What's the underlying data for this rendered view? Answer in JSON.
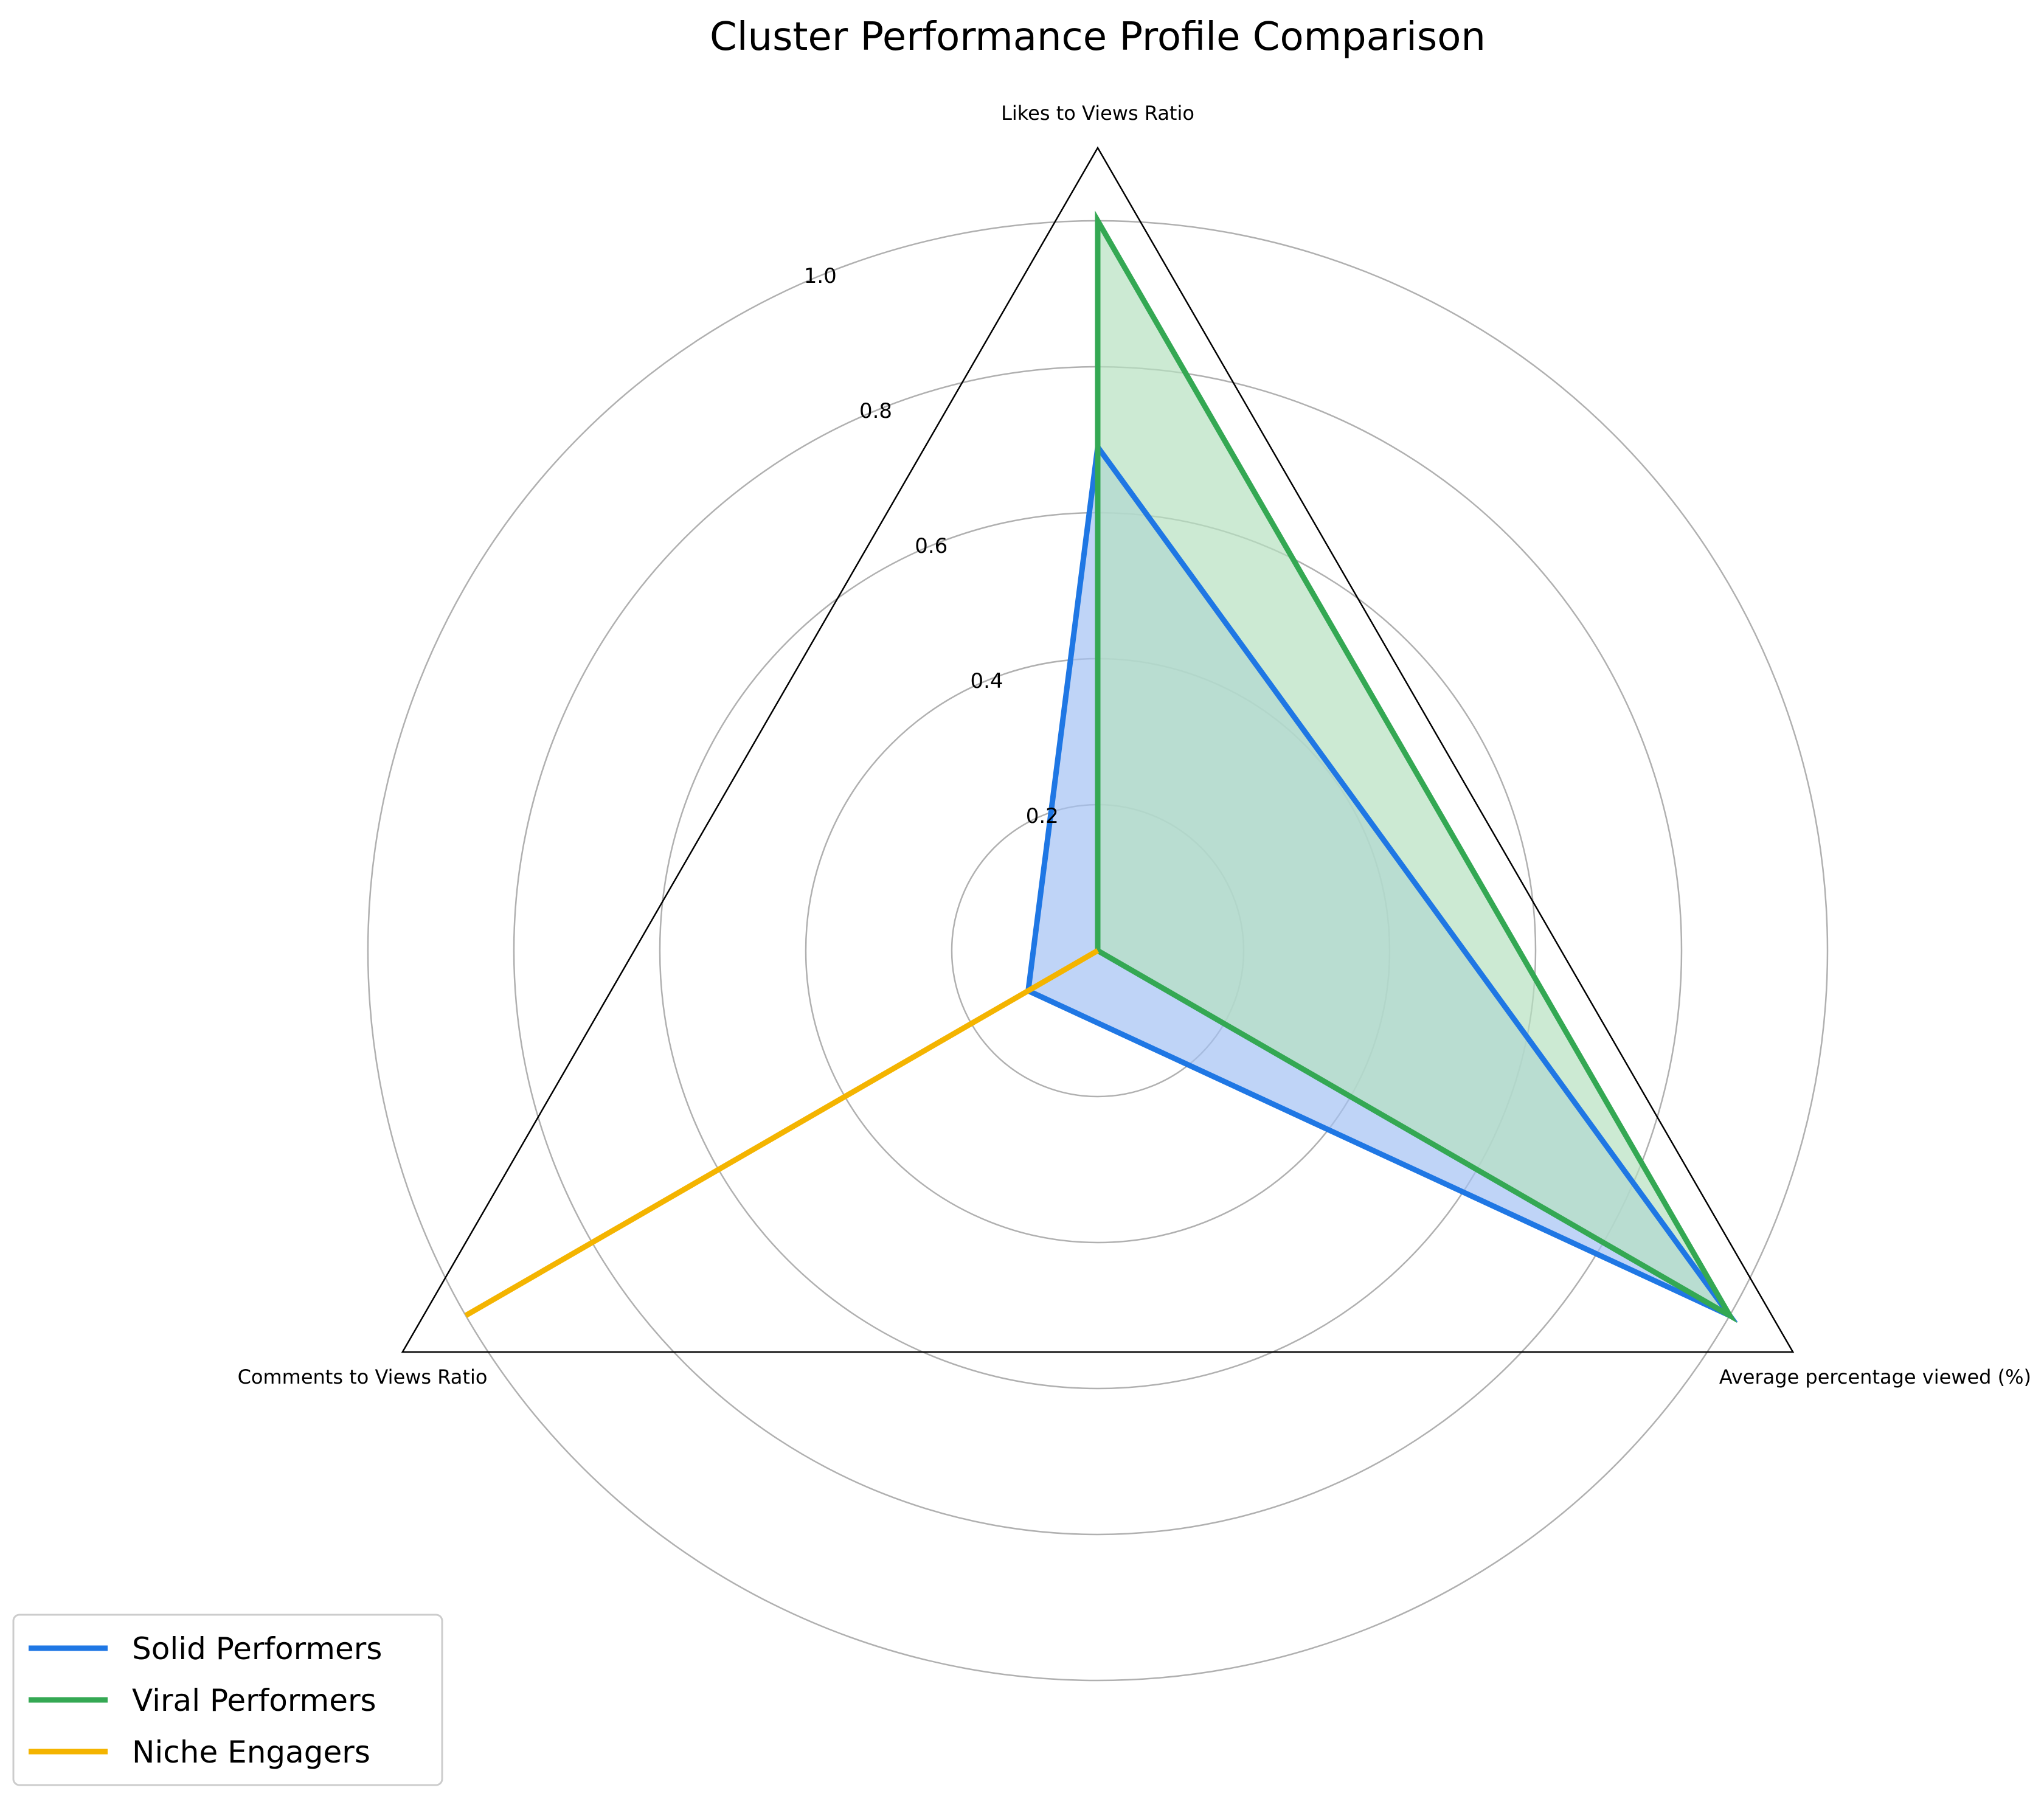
{
  "chart_data": {
    "type": "radar",
    "title": "Cluster Performance Profile Comparison",
    "axes": [
      "Likes to Views Ratio",
      "Average percentage viewed (%)",
      "Comments to Views Ratio"
    ],
    "rlim": [
      0,
      1.1
    ],
    "r_ticks": [
      0.2,
      0.4,
      0.6,
      0.8,
      1.0
    ],
    "r_tick_labels": [
      "0.2",
      "0.4",
      "0.6",
      "0.8",
      "1.0"
    ],
    "grid": true,
    "legend_position": "lower-left",
    "series": [
      {
        "name": "Solid Performers",
        "color": "#1f77e4",
        "fill": "#a4c2f4",
        "filled": true,
        "values": [
          0.69,
          1.0,
          0.11
        ]
      },
      {
        "name": "Viral Performers",
        "color": "#34a853",
        "fill": "#b7e1c1",
        "filled": true,
        "values": [
          1.0,
          1.0,
          0.0
        ]
      },
      {
        "name": "Niche Engagers",
        "color": "#f4b400",
        "fill": null,
        "filled": false,
        "values": [
          0.0,
          0.0,
          1.0
        ]
      }
    ]
  }
}
